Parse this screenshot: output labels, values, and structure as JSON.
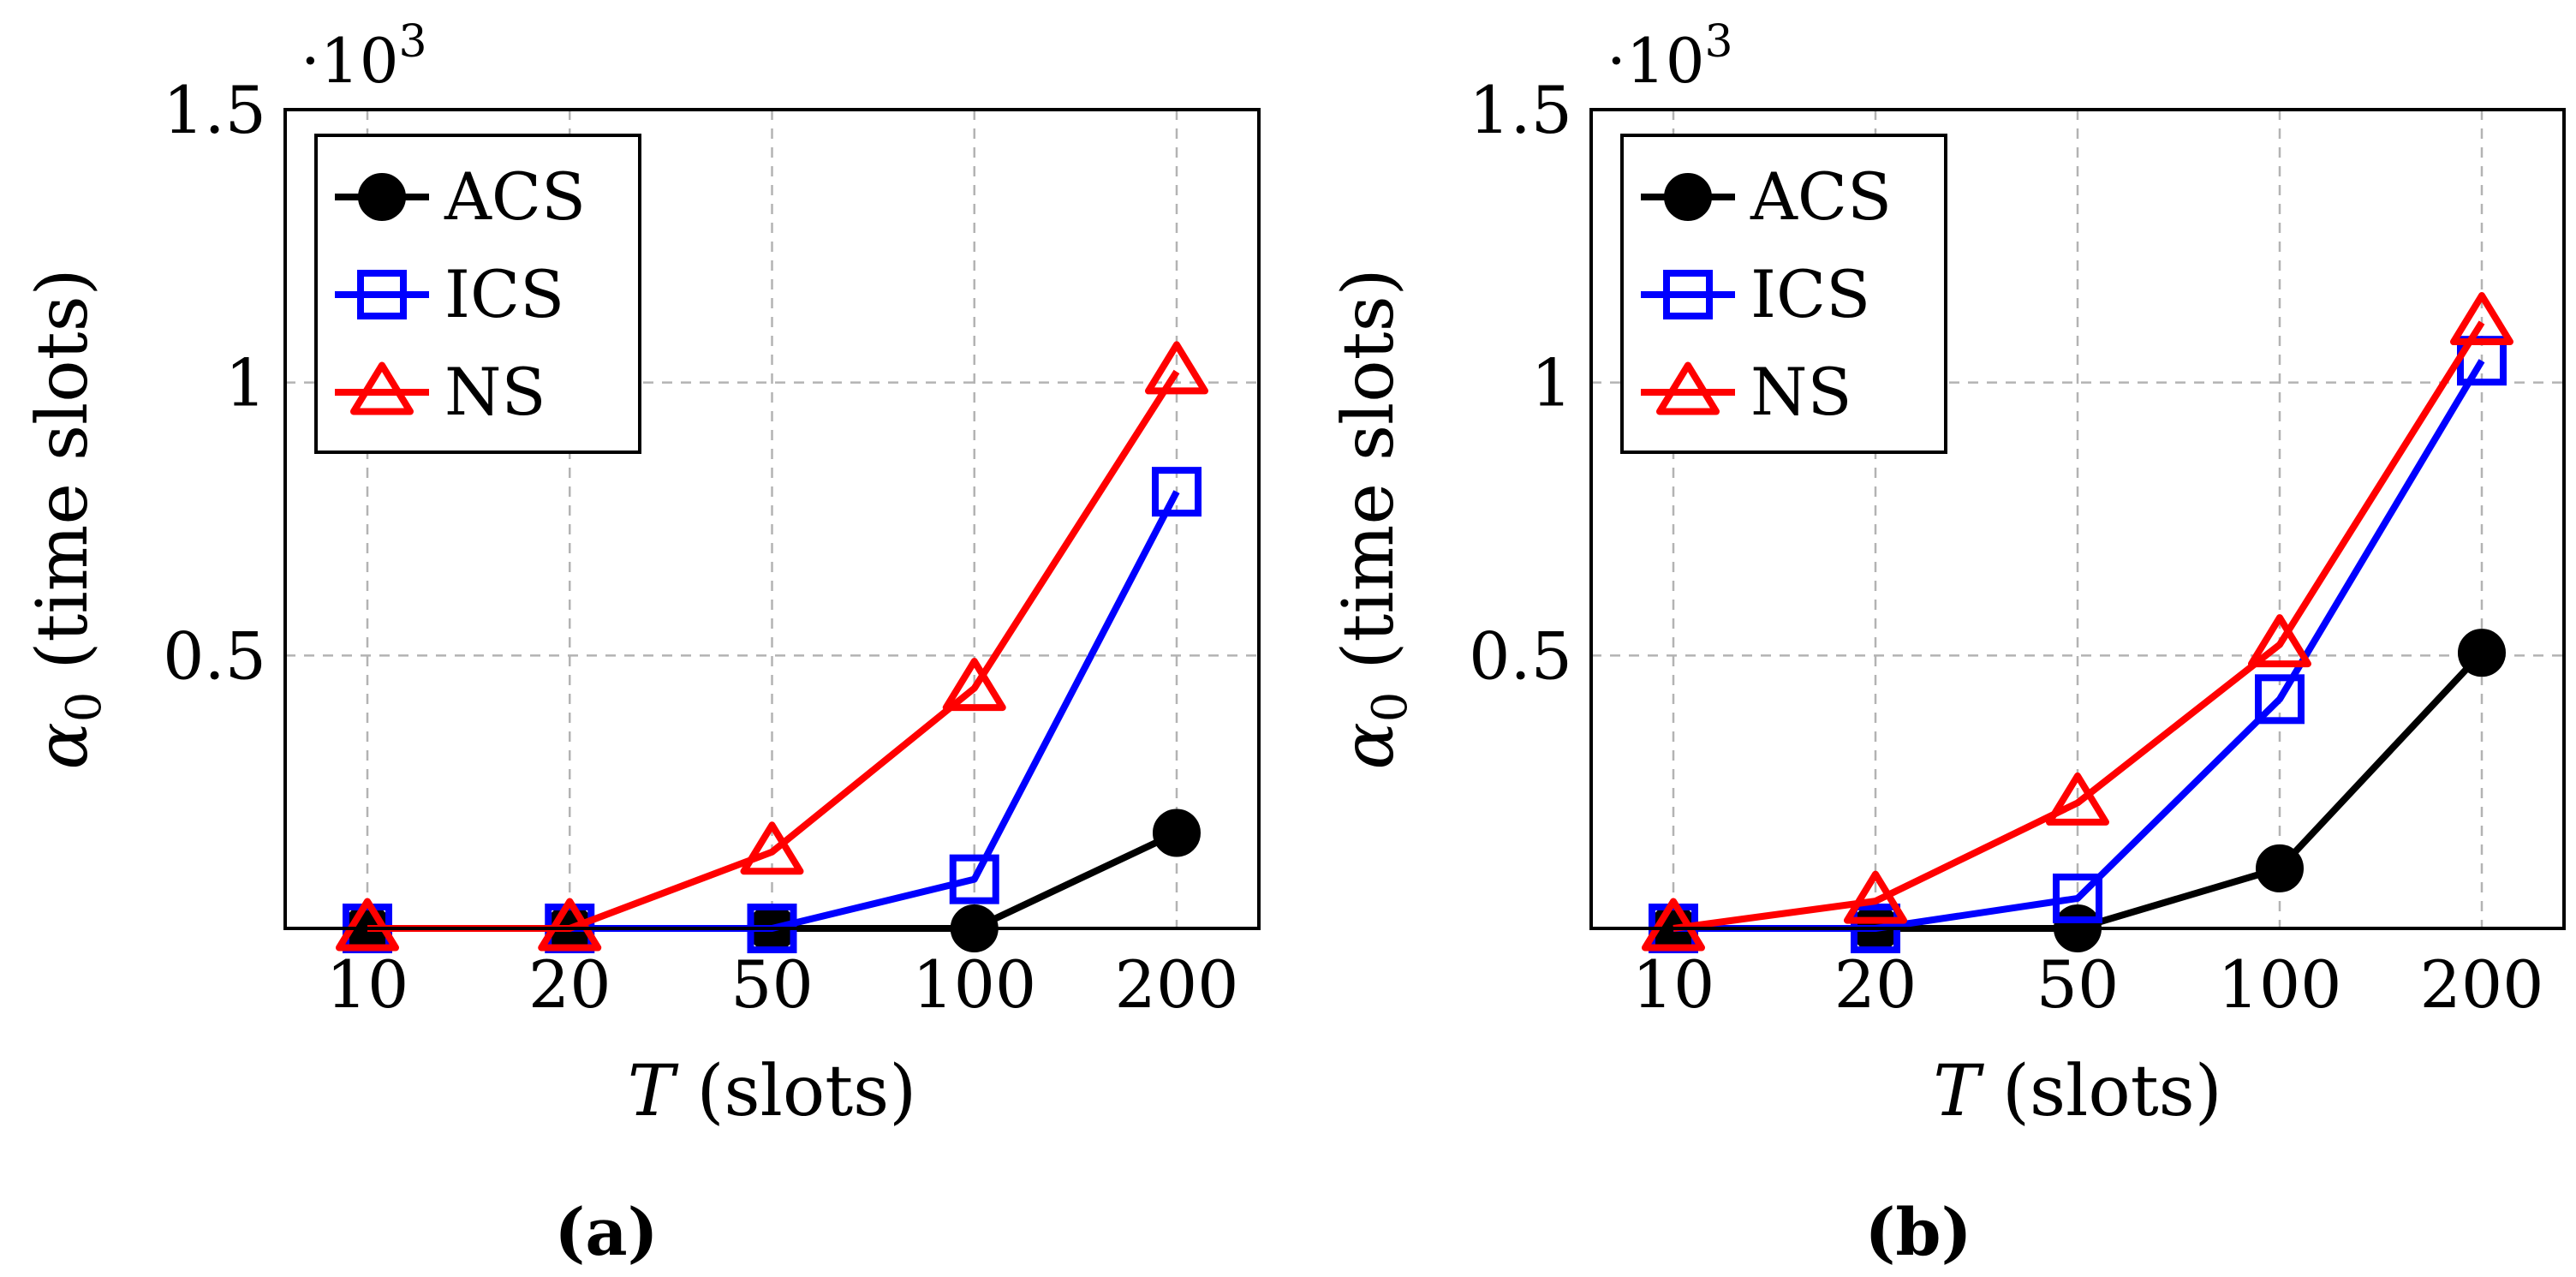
{
  "colors": {
    "ACS": "#000000",
    "ICS": "#0000ff",
    "NS": "#ff0000",
    "grid": "#b3b3b3",
    "frame": "#000000"
  },
  "chart_data": [
    {
      "type": "line",
      "caption": "(a)",
      "categories": [
        "10",
        "20",
        "50",
        "100",
        "200"
      ],
      "xlabel_var": "T",
      "xlabel_unit": " (slots)",
      "ylabel_var": "α",
      "ylabel_sub": "0",
      "ylabel_unit": " (time slots)",
      "ylim": [
        0,
        1.5
      ],
      "y_ticks": [
        "0.5",
        "1",
        "1.5"
      ],
      "y_tick_values": [
        0.5,
        1,
        1.5
      ],
      "scale_base": "·10",
      "scale_exp": "3",
      "grid": true,
      "legend_position": "top-left",
      "series": [
        {
          "name": "ACS",
          "marker": "circle",
          "values": [
            0,
            0,
            0,
            0,
            0.175
          ]
        },
        {
          "name": "ICS",
          "marker": "square",
          "values": [
            0,
            0,
            0,
            0.09,
            0.8
          ]
        },
        {
          "name": "NS",
          "marker": "triangle",
          "values": [
            0,
            0,
            0.14,
            0.44,
            1.02
          ]
        }
      ]
    },
    {
      "type": "line",
      "caption": "(b)",
      "categories": [
        "10",
        "20",
        "50",
        "100",
        "200"
      ],
      "xlabel_var": "T",
      "xlabel_unit": " (slots)",
      "ylabel_var": "α",
      "ylabel_sub": "0",
      "ylabel_unit": " (time slots)",
      "ylim": [
        0,
        1.5
      ],
      "y_ticks": [
        "0.5",
        "1",
        "1.5"
      ],
      "y_tick_values": [
        0.5,
        1,
        1.5
      ],
      "scale_base": "·10",
      "scale_exp": "3",
      "grid": true,
      "legend_position": "top-left",
      "series": [
        {
          "name": "ACS",
          "marker": "circle",
          "values": [
            0,
            0,
            0,
            0.11,
            0.505
          ]
        },
        {
          "name": "ICS",
          "marker": "square",
          "values": [
            0,
            0,
            0.055,
            0.42,
            1.04
          ]
        },
        {
          "name": "NS",
          "marker": "triangle",
          "values": [
            0,
            0.05,
            0.23,
            0.52,
            1.11
          ]
        }
      ]
    }
  ]
}
